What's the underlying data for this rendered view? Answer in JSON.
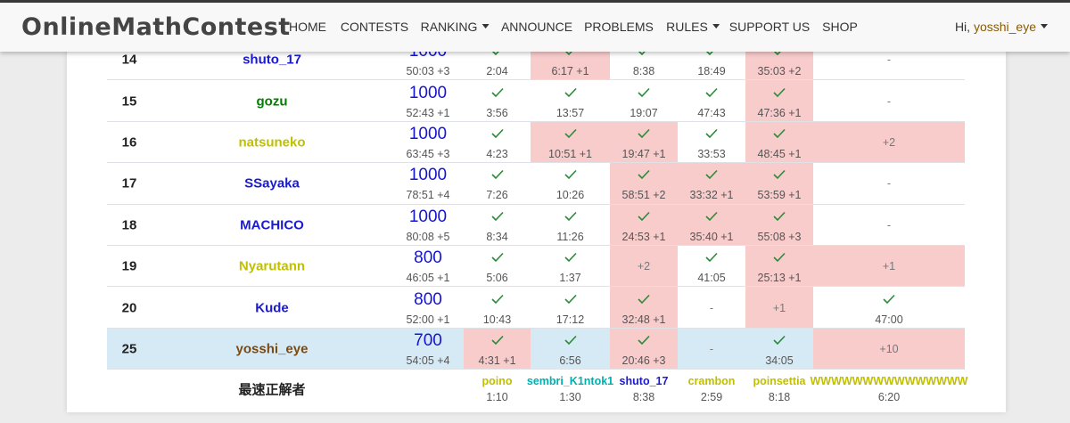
{
  "navbar": {
    "logo": "OnlineMathContest",
    "items": [
      {
        "label": "HOME"
      },
      {
        "label": "CONTESTS"
      },
      {
        "label": "RANKING",
        "dropdown": true
      },
      {
        "label": "ANNOUNCE"
      },
      {
        "label": "PROBLEMS"
      },
      {
        "label": "RULES",
        "dropdown": true
      },
      {
        "label": "SUPPORT US"
      },
      {
        "label": "SHOP"
      }
    ],
    "greeting": "Hi,",
    "user": "yosshi_eye"
  },
  "standings": {
    "rows": [
      {
        "rank": 14,
        "name": "shuto_17",
        "color": "#1a1ad0",
        "score": 1000,
        "time": "50:03 +3",
        "cells": [
          {
            "text": "2:04",
            "ac": true
          },
          {
            "text": "6:17 +1",
            "ac": true,
            "penalty": true
          },
          {
            "text": "8:38",
            "ac": true
          },
          {
            "text": "18:49",
            "ac": true
          },
          {
            "text": "35:03 +2",
            "ac": true,
            "penalty": true
          },
          {
            "text": "-"
          }
        ]
      },
      {
        "rank": 15,
        "name": "gozu",
        "color": "#008000",
        "score": 1000,
        "time": "52:43 +1",
        "cells": [
          {
            "text": "3:56",
            "ac": true
          },
          {
            "text": "13:57",
            "ac": true
          },
          {
            "text": "19:07",
            "ac": true
          },
          {
            "text": "47:43",
            "ac": true
          },
          {
            "text": "47:36 +1",
            "ac": true,
            "penalty": true
          },
          {
            "text": "-"
          }
        ]
      },
      {
        "rank": 16,
        "name": "natsuneko",
        "color": "#c0c000",
        "score": 1000,
        "time": "63:45 +3",
        "cells": [
          {
            "text": "4:23",
            "ac": true
          },
          {
            "text": "10:51 +1",
            "ac": true,
            "penalty": true
          },
          {
            "text": "19:47 +1",
            "ac": true,
            "penalty": true
          },
          {
            "text": "33:53",
            "ac": true
          },
          {
            "text": "48:45 +1",
            "ac": true,
            "penalty": true
          },
          {
            "text": "+2",
            "penalty": true
          }
        ]
      },
      {
        "rank": 17,
        "name": "SSayaka",
        "color": "#1a1ad0",
        "score": 1000,
        "time": "78:51 +4",
        "cells": [
          {
            "text": "7:26",
            "ac": true
          },
          {
            "text": "10:26",
            "ac": true
          },
          {
            "text": "58:51 +2",
            "ac": true,
            "penalty": true
          },
          {
            "text": "33:32 +1",
            "ac": true,
            "penalty": true
          },
          {
            "text": "53:59 +1",
            "ac": true,
            "penalty": true
          },
          {
            "text": "-"
          }
        ]
      },
      {
        "rank": 18,
        "name": "MACHICO",
        "color": "#1a1ad0",
        "score": 1000,
        "time": "80:08 +5",
        "cells": [
          {
            "text": "8:34",
            "ac": true
          },
          {
            "text": "11:26",
            "ac": true
          },
          {
            "text": "24:53 +1",
            "ac": true,
            "penalty": true
          },
          {
            "text": "35:40 +1",
            "ac": true,
            "penalty": true
          },
          {
            "text": "55:08 +3",
            "ac": true,
            "penalty": true
          },
          {
            "text": "-"
          }
        ]
      },
      {
        "rank": 19,
        "name": "Nyarutann",
        "color": "#c0c000",
        "score": 800,
        "time": "46:05 +1",
        "cells": [
          {
            "text": "5:06",
            "ac": true
          },
          {
            "text": "1:37",
            "ac": true
          },
          {
            "text": "+2",
            "penalty": true
          },
          {
            "text": "41:05",
            "ac": true
          },
          {
            "text": "25:13 +1",
            "ac": true,
            "penalty": true
          },
          {
            "text": "+1",
            "penalty": true
          }
        ]
      },
      {
        "rank": 20,
        "name": "Kude",
        "color": "#1a1ad0",
        "score": 800,
        "time": "52:00 +1",
        "cells": [
          {
            "text": "10:43",
            "ac": true
          },
          {
            "text": "17:12",
            "ac": true
          },
          {
            "text": "32:48 +1",
            "ac": true,
            "penalty": true
          },
          {
            "text": "-"
          },
          {
            "text": "+1",
            "penalty": true
          },
          {
            "text": "47:00",
            "ac": true
          }
        ]
      },
      {
        "rank": 25,
        "name": "yosshi_eye",
        "color": "#7a4a10",
        "score": 700,
        "time": "54:05 +4",
        "self": true,
        "cells": [
          {
            "text": "4:31 +1",
            "ac": true,
            "penalty": true
          },
          {
            "text": "6:56",
            "ac": true
          },
          {
            "text": "20:46 +3",
            "ac": true,
            "penalty": true
          },
          {
            "text": "-"
          },
          {
            "text": "34:05",
            "ac": true
          },
          {
            "text": "+10",
            "penalty": true
          }
        ]
      }
    ],
    "fastest": {
      "label": "最速正解者",
      "entries": [
        {
          "name": "poino",
          "color": "#c0c000",
          "time": "1:10"
        },
        {
          "name": "sembri_K1ntok1",
          "color": "#00b0b0",
          "time": "1:30"
        },
        {
          "name": "shuto_17",
          "color": "#1a1ad0",
          "time": "8:38"
        },
        {
          "name": "crambon",
          "color": "#c0c000",
          "time": "2:59"
        },
        {
          "name": "poinsettia",
          "color": "#c0c000",
          "time": "8:18"
        },
        {
          "name": "WWWWWWWWWWWWWWW",
          "color": "#c0c000",
          "time": "6:20"
        }
      ]
    }
  }
}
